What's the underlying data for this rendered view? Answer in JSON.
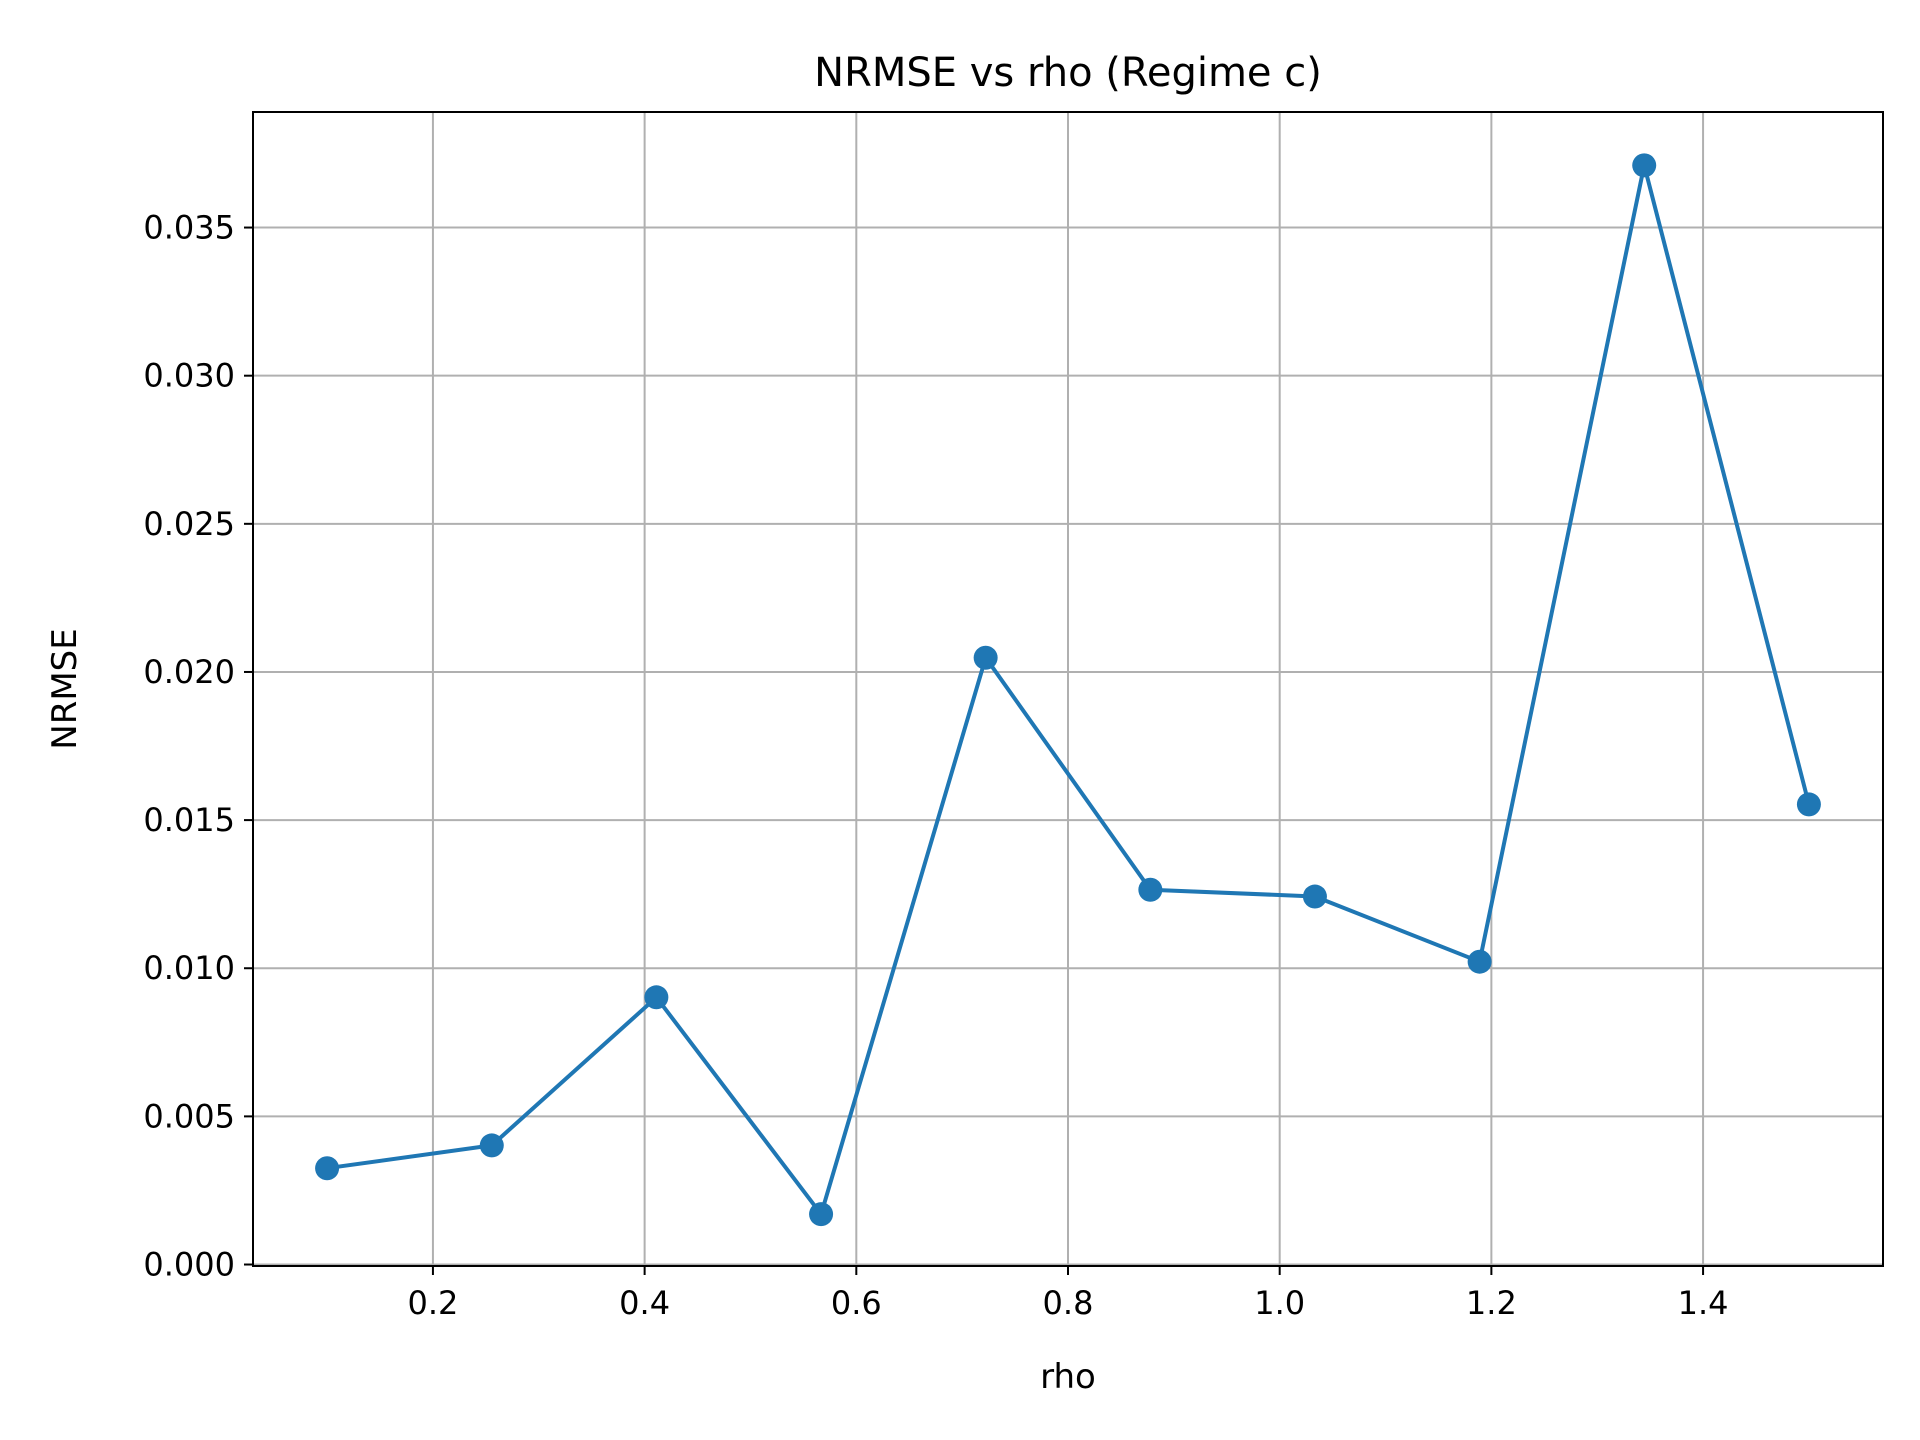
{
  "chart_data": {
    "type": "line",
    "title": "NRMSE vs rho (Regime c)",
    "xlabel": "rho",
    "ylabel": "NRMSE",
    "xlim": [
      0.03,
      1.57
    ],
    "ylim": [
      -5e-05,
      0.0389
    ],
    "xticks": [
      0.2,
      0.4,
      0.6,
      0.8,
      1.0,
      1.2,
      1.4
    ],
    "xtick_labels": [
      "0.2",
      "0.4",
      "0.6",
      "0.8",
      "1.0",
      "1.2",
      "1.4"
    ],
    "yticks": [
      0.0,
      0.005,
      0.01,
      0.015,
      0.02,
      0.025,
      0.03,
      0.035
    ],
    "ytick_labels": [
      "0.000",
      "0.005",
      "0.010",
      "0.015",
      "0.020",
      "0.025",
      "0.030",
      "0.035"
    ],
    "grid": true,
    "color": "#1f77b4",
    "x": [
      0.1,
      0.2556,
      0.4111,
      0.5667,
      0.7222,
      0.8778,
      1.0333,
      1.1889,
      1.3444,
      1.5
    ],
    "y": [
      0.00325,
      0.00402,
      0.00902,
      0.0017,
      0.02048,
      0.01265,
      0.01242,
      0.01022,
      0.0371,
      0.01553
    ]
  }
}
